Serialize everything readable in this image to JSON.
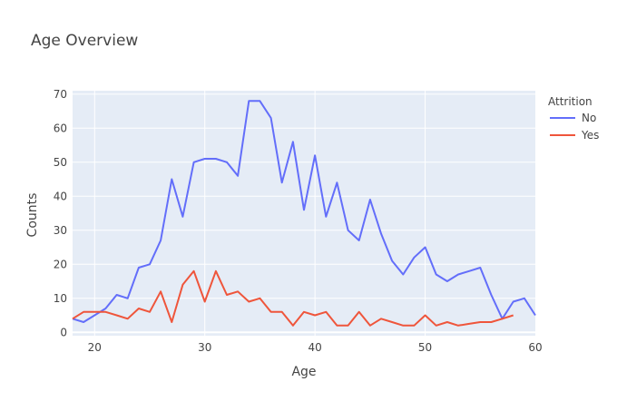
{
  "chart_data": {
    "type": "line",
    "title": "Age Overview",
    "xlabel": "Age",
    "ylabel": "Counts",
    "xlim": [
      18,
      60
    ],
    "ylim": [
      -1,
      71
    ],
    "x_ticks": [
      20,
      30,
      40,
      50,
      60
    ],
    "y_ticks": [
      0,
      10,
      20,
      30,
      40,
      50,
      60,
      70
    ],
    "grid": true,
    "legend": {
      "title": "Attrition",
      "placement": "top-right"
    },
    "series": [
      {
        "name": "No",
        "color": "#636efa",
        "x": [
          18,
          19,
          20,
          21,
          22,
          23,
          24,
          25,
          26,
          27,
          28,
          29,
          30,
          31,
          32,
          33,
          34,
          35,
          36,
          37,
          38,
          39,
          40,
          41,
          42,
          43,
          44,
          45,
          46,
          47,
          48,
          49,
          50,
          51,
          52,
          53,
          54,
          55,
          56,
          57,
          58,
          59,
          60
        ],
        "y": [
          4,
          3,
          5,
          7,
          11,
          10,
          19,
          20,
          27,
          45,
          34,
          50,
          51,
          51,
          50,
          46,
          68,
          68,
          63,
          44,
          56,
          36,
          52,
          34,
          44,
          30,
          27,
          39,
          29,
          21,
          17,
          22,
          25,
          17,
          15,
          17,
          18,
          19,
          11,
          4,
          9,
          10,
          5
        ]
      },
      {
        "name": "Yes",
        "color": "#ef553b",
        "x": [
          18,
          19,
          20,
          21,
          22,
          23,
          24,
          25,
          26,
          27,
          28,
          29,
          30,
          31,
          32,
          33,
          34,
          35,
          36,
          37,
          38,
          39,
          40,
          41,
          42,
          43,
          44,
          45,
          46,
          47,
          48,
          49,
          50,
          51,
          52,
          53,
          54,
          55,
          56,
          57,
          58
        ],
        "y": [
          4,
          6,
          6,
          6,
          5,
          4,
          7,
          6,
          12,
          3,
          14,
          18,
          9,
          18,
          11,
          12,
          9,
          10,
          6,
          6,
          2,
          6,
          5,
          6,
          2,
          2,
          6,
          2,
          4,
          3,
          2,
          2,
          5,
          2,
          3,
          2,
          2.5,
          3,
          3,
          4,
          5
        ]
      }
    ]
  }
}
